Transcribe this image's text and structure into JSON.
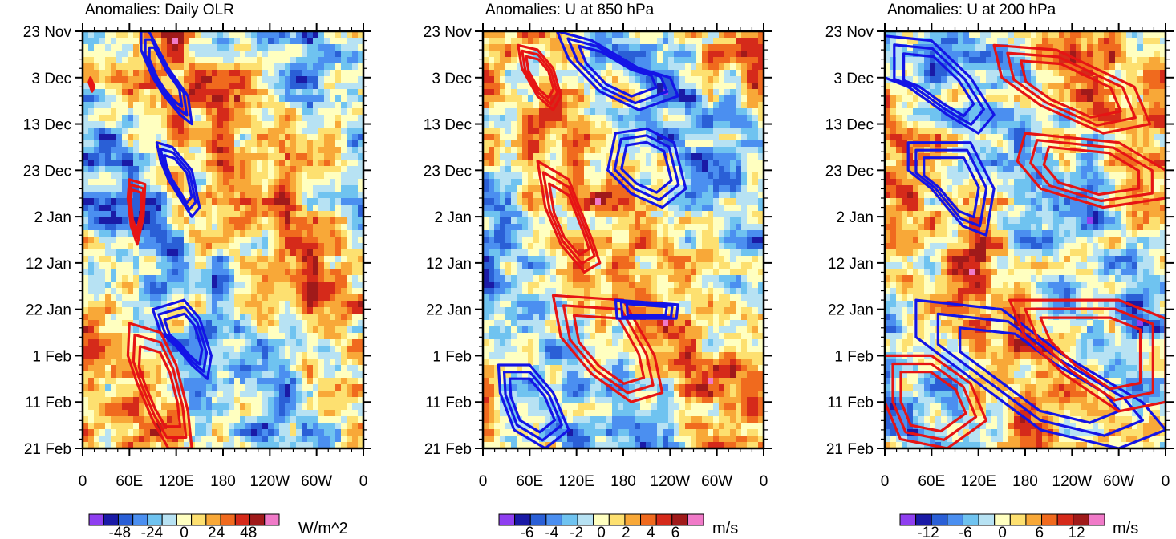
{
  "chart_data": [
    {
      "type": "heatmap",
      "title": "Anomalies: Daily OLR",
      "x_tick_labels": [
        "0",
        "60E",
        "120E",
        "180",
        "120W",
        "60W",
        "0"
      ],
      "y_tick_labels": [
        "23 Nov",
        "3 Dec",
        "13 Dec",
        "23 Dec",
        "2 Jan",
        "12 Jan",
        "22 Jan",
        "1 Feb",
        "11 Feb",
        "21 Feb"
      ],
      "xlim": [
        0,
        360
      ],
      "ylim_days": [
        0,
        90
      ],
      "colorbar": {
        "units": "W/m^2",
        "labels": [
          "-48",
          "-24",
          "0",
          "24",
          "48"
        ],
        "label_values": [
          -48,
          -24,
          0,
          24,
          48
        ],
        "levels": [
          -60,
          -48,
          -36,
          -24,
          -12,
          0,
          12,
          24,
          36,
          48,
          60
        ],
        "colors": [
          "#8f3ff0",
          "#1a1aa6",
          "#2a5fd6",
          "#4b8ff0",
          "#6fc3f0",
          "#b7e2f3",
          "#ffffc0",
          "#fde070",
          "#f8a838",
          "#f06a1e",
          "#d52a1a",
          "#a01a1a",
          "#f07ac8"
        ]
      },
      "contour_bands": [
        {
          "color": "blue",
          "points": [
            [
              75,
              0
            ],
            [
              85,
              0
            ],
            [
              110,
              8
            ],
            [
              135,
              14
            ],
            [
              140,
              20
            ],
            [
              125,
              18
            ],
            [
              105,
              14
            ],
            [
              90,
              10
            ],
            [
              75,
              4
            ]
          ]
        },
        {
          "color": "blue",
          "points": [
            [
              95,
              24
            ],
            [
              115,
              25
            ],
            [
              140,
              30
            ],
            [
              150,
              38
            ],
            [
              140,
              40
            ],
            [
              125,
              36
            ],
            [
              110,
              32
            ],
            [
              100,
              28
            ]
          ]
        },
        {
          "color": "blue",
          "points": [
            [
              90,
              60
            ],
            [
              130,
              58
            ],
            [
              150,
              62
            ],
            [
              165,
              70
            ],
            [
              160,
              75
            ],
            [
              140,
              72
            ],
            [
              120,
              68
            ],
            [
              100,
              65
            ]
          ]
        },
        {
          "color": "red",
          "points": [
            [
              60,
              32
            ],
            [
              80,
              33
            ],
            [
              78,
              40
            ],
            [
              70,
              46
            ],
            [
              62,
              42
            ],
            [
              58,
              36
            ]
          ]
        },
        {
          "color": "red",
          "points": [
            [
              60,
              63
            ],
            [
              100,
              65
            ],
            [
              120,
              72
            ],
            [
              135,
              82
            ],
            [
              140,
              90
            ],
            [
              110,
              90
            ],
            [
              90,
              84
            ],
            [
              70,
              76
            ],
            [
              58,
              70
            ]
          ]
        },
        {
          "color": "red",
          "points": [
            [
              10,
              10
            ],
            [
              15,
              12
            ],
            [
              12,
              13
            ],
            [
              8,
              11
            ]
          ]
        }
      ]
    },
    {
      "type": "heatmap",
      "title": "Anomalies: U at 850 hPa",
      "x_tick_labels": [
        "0",
        "60E",
        "120E",
        "180",
        "120W",
        "60W",
        "0"
      ],
      "y_tick_labels": [
        "23 Nov",
        "3 Dec",
        "13 Dec",
        "23 Dec",
        "2 Jan",
        "12 Jan",
        "22 Jan",
        "1 Feb",
        "11 Feb",
        "21 Feb"
      ],
      "xlim": [
        0,
        360
      ],
      "ylim_days": [
        0,
        90
      ],
      "colorbar": {
        "units": "m/s",
        "labels": [
          "-6",
          "-4",
          "-2",
          "0",
          "2",
          "4",
          "6"
        ],
        "label_values": [
          -6,
          -4,
          -2,
          0,
          2,
          4,
          6
        ],
        "levels": [
          -7,
          -6,
          -5,
          -4,
          -3,
          -2,
          -1,
          0,
          1,
          2,
          3,
          4,
          5,
          6,
          7
        ],
        "colors": [
          "#8f3ff0",
          "#1a1aa6",
          "#2a5fd6",
          "#4b8ff0",
          "#6fc3f0",
          "#b7e2f3",
          "#ffffc0",
          "#fde070",
          "#f8a838",
          "#f06a1e",
          "#d52a1a",
          "#a01a1a",
          "#f07ac8"
        ]
      },
      "contour_bands": [
        {
          "color": "red",
          "points": [
            [
              45,
              3
            ],
            [
              70,
              4
            ],
            [
              90,
              8
            ],
            [
              100,
              14
            ],
            [
              90,
              17
            ],
            [
              70,
              14
            ],
            [
              50,
              8
            ]
          ]
        },
        {
          "color": "blue",
          "points": [
            [
              95,
              0
            ],
            [
              140,
              2
            ],
            [
              200,
              8
            ],
            [
              240,
              10
            ],
            [
              250,
              14
            ],
            [
              200,
              17
            ],
            [
              150,
              13
            ],
            [
              110,
              6
            ]
          ]
        },
        {
          "color": "blue",
          "points": [
            [
              170,
              22
            ],
            [
              210,
              21
            ],
            [
              245,
              24
            ],
            [
              260,
              34
            ],
            [
              230,
              38
            ],
            [
              190,
              35
            ],
            [
              160,
              30
            ]
          ]
        },
        {
          "color": "red",
          "points": [
            [
              70,
              28
            ],
            [
              110,
              32
            ],
            [
              140,
              45
            ],
            [
              150,
              50
            ],
            [
              130,
              52
            ],
            [
              100,
              46
            ],
            [
              80,
              38
            ]
          ]
        },
        {
          "color": "red",
          "points": [
            [
              90,
              57
            ],
            [
              180,
              58
            ],
            [
              220,
              70
            ],
            [
              230,
              78
            ],
            [
              190,
              80
            ],
            [
              140,
              74
            ],
            [
              100,
              66
            ]
          ]
        },
        {
          "color": "blue",
          "points": [
            [
              20,
              72
            ],
            [
              60,
              72
            ],
            [
              90,
              78
            ],
            [
              110,
              86
            ],
            [
              80,
              90
            ],
            [
              40,
              86
            ],
            [
              22,
              78
            ]
          ]
        },
        {
          "color": "blue",
          "points": [
            [
              170,
              58
            ],
            [
              250,
              59
            ],
            [
              248,
              62
            ],
            [
              172,
              62
            ]
          ]
        }
      ]
    },
    {
      "type": "heatmap",
      "title": "Anomalies: U at 200 hPa",
      "x_tick_labels": [
        "0",
        "60E",
        "120E",
        "180",
        "120W",
        "60W",
        "0"
      ],
      "y_tick_labels": [
        "23 Nov",
        "3 Dec",
        "13 Dec",
        "23 Dec",
        "2 Jan",
        "12 Jan",
        "22 Jan",
        "1 Feb",
        "11 Feb",
        "21 Feb"
      ],
      "xlim": [
        0,
        360
      ],
      "ylim_days": [
        0,
        90
      ],
      "colorbar": {
        "units": "m/s",
        "labels": [
          "-12",
          "-6",
          "0",
          "6",
          "12"
        ],
        "label_values": [
          -12,
          -6,
          0,
          6,
          12
        ],
        "levels": [
          -14,
          -12,
          -10,
          -8,
          -6,
          -4,
          -2,
          0,
          2,
          4,
          6,
          8,
          10,
          12,
          14
        ],
        "colors": [
          "#8f3ff0",
          "#1a1aa6",
          "#2a5fd6",
          "#4b8ff0",
          "#6fc3f0",
          "#b7e2f3",
          "#ffffc0",
          "#fde070",
          "#f8a838",
          "#f06a1e",
          "#d52a1a",
          "#a01a1a",
          "#f07ac8"
        ]
      },
      "contour_bands": [
        {
          "color": "blue",
          "points": [
            [
              0,
              1
            ],
            [
              60,
              2
            ],
            [
              110,
              10
            ],
            [
              140,
              18
            ],
            [
              120,
              22
            ],
            [
              80,
              18
            ],
            [
              30,
              12
            ],
            [
              0,
              10
            ]
          ]
        },
        {
          "color": "red",
          "points": [
            [
              140,
              3
            ],
            [
              220,
              4
            ],
            [
              320,
              12
            ],
            [
              340,
              20
            ],
            [
              280,
              22
            ],
            [
              200,
              16
            ],
            [
              150,
              10
            ]
          ]
        },
        {
          "color": "red",
          "points": [
            [
              180,
              22
            ],
            [
              300,
              24
            ],
            [
              360,
              30
            ],
            [
              360,
              36
            ],
            [
              280,
              38
            ],
            [
              200,
              34
            ],
            [
              170,
              28
            ]
          ]
        },
        {
          "color": "blue",
          "points": [
            [
              30,
              24
            ],
            [
              110,
              24
            ],
            [
              140,
              34
            ],
            [
              130,
              44
            ],
            [
              100,
              42
            ],
            [
              60,
              34
            ],
            [
              30,
              30
            ]
          ]
        },
        {
          "color": "blue",
          "points": [
            [
              40,
              58
            ],
            [
              150,
              60
            ],
            [
              230,
              70
            ],
            [
              330,
              80
            ],
            [
              360,
              86
            ],
            [
              300,
              90
            ],
            [
              200,
              86
            ],
            [
              120,
              76
            ],
            [
              40,
              66
            ]
          ]
        },
        {
          "color": "red",
          "points": [
            [
              0,
              70
            ],
            [
              60,
              70
            ],
            [
              110,
              76
            ],
            [
              130,
              84
            ],
            [
              80,
              90
            ],
            [
              20,
              88
            ],
            [
              0,
              80
            ]
          ]
        },
        {
          "color": "red",
          "points": [
            [
              160,
              58
            ],
            [
              300,
              58
            ],
            [
              360,
              62
            ],
            [
              360,
              80
            ],
            [
              300,
              82
            ],
            [
              230,
              74
            ],
            [
              180,
              66
            ]
          ]
        }
      ]
    }
  ]
}
